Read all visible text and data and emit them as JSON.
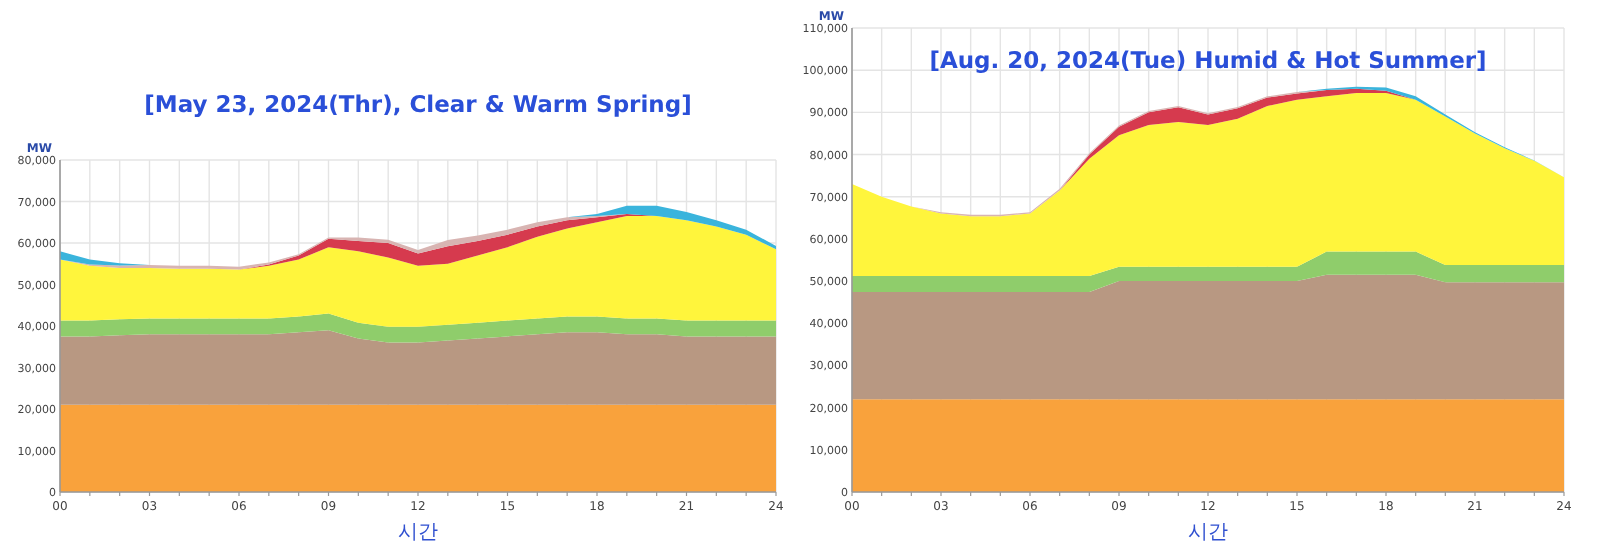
{
  "chart_data": [
    {
      "type": "area",
      "stacked": true,
      "title": "[May 23, 2024(Thr), Clear & Warm Spring]",
      "ylabel": "MW",
      "xlabel": "시간",
      "grid": true,
      "x": [
        0,
        1,
        2,
        3,
        4,
        5,
        6,
        7,
        8,
        9,
        10,
        11,
        12,
        13,
        14,
        15,
        16,
        17,
        18,
        19,
        20,
        21,
        22,
        23,
        24
      ],
      "xlim": [
        0,
        24
      ],
      "xticks": [
        {
          "value": 0,
          "label": "00"
        },
        {
          "value": 1,
          "label": null
        },
        {
          "value": 2,
          "label": null
        },
        {
          "value": 3,
          "label": "03"
        },
        {
          "value": 4,
          "label": null
        },
        {
          "value": 5,
          "label": null
        },
        {
          "value": 6,
          "label": "06"
        },
        {
          "value": 7,
          "label": null
        },
        {
          "value": 8,
          "label": null
        },
        {
          "value": 9,
          "label": "09"
        },
        {
          "value": 10,
          "label": null
        },
        {
          "value": 11,
          "label": null
        },
        {
          "value": 12,
          "label": "12"
        },
        {
          "value": 13,
          "label": null
        },
        {
          "value": 14,
          "label": null
        },
        {
          "value": 15,
          "label": "15"
        },
        {
          "value": 16,
          "label": null
        },
        {
          "value": 17,
          "label": null
        },
        {
          "value": 18,
          "label": "18"
        },
        {
          "value": 19,
          "label": null
        },
        {
          "value": 20,
          "label": null
        },
        {
          "value": 21,
          "label": "21"
        },
        {
          "value": 22,
          "label": null
        },
        {
          "value": 23,
          "label": null
        },
        {
          "value": 24,
          "label": "24"
        }
      ],
      "ylim": [
        0,
        80000
      ],
      "yticks": [
        0,
        {
          "value": 10000,
          "label": "10,000"
        },
        {
          "value": 20000,
          "label": "20,000"
        },
        {
          "value": 30000,
          "label": "30,000"
        },
        {
          "value": 40000,
          "label": "40,000"
        },
        {
          "value": 50000,
          "label": "50,000"
        },
        {
          "value": 60000,
          "label": "60,000"
        },
        {
          "value": 70000,
          "label": "70,000"
        },
        {
          "value": 80000,
          "label": "80,000"
        }
      ],
      "series": [
        {
          "color": "#f9a23c",
          "values": [
            21000,
            21000,
            21000,
            21000,
            21000,
            21000,
            21000,
            21000,
            21000,
            21000,
            21000,
            21000,
            21000,
            21000,
            21000,
            21000,
            21000,
            21000,
            21000,
            21000,
            21000,
            21000,
            21000,
            21000,
            21000
          ]
        },
        {
          "color": "#b89882",
          "values": [
            16500,
            16500,
            16800,
            17000,
            17000,
            17000,
            17000,
            17000,
            17500,
            18000,
            16000,
            15000,
            15000,
            15500,
            16000,
            16500,
            17000,
            17500,
            17500,
            17000,
            17000,
            16500,
            16500,
            16500,
            16500
          ]
        },
        {
          "color": "#8fcd6b",
          "values": [
            3800,
            3800,
            3800,
            3800,
            3800,
            3800,
            3800,
            3800,
            3800,
            4000,
            3800,
            3800,
            3800,
            3800,
            3800,
            3800,
            3800,
            3800,
            3800,
            3800,
            3800,
            3800,
            3800,
            3800,
            3800
          ]
        },
        {
          "color": "#fff53c",
          "values": [
            14700,
            13200,
            12400,
            12200,
            12000,
            12000,
            11800,
            12700,
            13700,
            16000,
            17200,
            16700,
            14700,
            14700,
            16200,
            17700,
            19700,
            21200,
            22700,
            24700,
            24700,
            24200,
            22700,
            20700,
            17200
          ]
        },
        {
          "color": "#d63a4e",
          "values": [
            null,
            null,
            null,
            null,
            null,
            null,
            0,
            300,
            1000,
            2000,
            2500,
            3500,
            3000,
            4200,
            3500,
            3000,
            2500,
            2000,
            1200,
            500,
            0,
            null,
            null,
            null,
            null
          ]
        },
        {
          "color": "#d8b4b2",
          "values": [
            0,
            300,
            600,
            700,
            700,
            700,
            700,
            500,
            300,
            300,
            800,
            800,
            800,
            1500,
            1300,
            1200,
            1000,
            700,
            300,
            0,
            null,
            null,
            null,
            null,
            null
          ]
        },
        {
          "color": "#3ab4dc",
          "values": [
            2000,
            1200,
            500,
            0,
            null,
            null,
            null,
            null,
            null,
            null,
            null,
            null,
            null,
            null,
            null,
            null,
            null,
            0,
            500,
            2000,
            2500,
            2000,
            1500,
            1200,
            800
          ]
        }
      ]
    },
    {
      "type": "area",
      "stacked": true,
      "title": "[Aug. 20, 2024(Tue) Humid & Hot Summer]",
      "ylabel": "MW",
      "xlabel": "시간",
      "grid": true,
      "x": [
        0,
        1,
        2,
        3,
        4,
        5,
        6,
        7,
        8,
        9,
        10,
        11,
        12,
        13,
        14,
        15,
        16,
        17,
        18,
        19,
        20,
        21,
        22,
        23,
        24
      ],
      "xlim": [
        0,
        24
      ],
      "xticks": [
        {
          "value": 0,
          "label": "00"
        },
        {
          "value": 1,
          "label": null
        },
        {
          "value": 2,
          "label": null
        },
        {
          "value": 3,
          "label": "03"
        },
        {
          "value": 4,
          "label": null
        },
        {
          "value": 5,
          "label": null
        },
        {
          "value": 6,
          "label": "06"
        },
        {
          "value": 7,
          "label": null
        },
        {
          "value": 8,
          "label": null
        },
        {
          "value": 9,
          "label": "09"
        },
        {
          "value": 10,
          "label": null
        },
        {
          "value": 11,
          "label": null
        },
        {
          "value": 12,
          "label": "12"
        },
        {
          "value": 13,
          "label": null
        },
        {
          "value": 14,
          "label": null
        },
        {
          "value": 15,
          "label": "15"
        },
        {
          "value": 16,
          "label": null
        },
        {
          "value": 17,
          "label": null
        },
        {
          "value": 18,
          "label": "18"
        },
        {
          "value": 19,
          "label": null
        },
        {
          "value": 20,
          "label": null
        },
        {
          "value": 21,
          "label": "21"
        },
        {
          "value": 22,
          "label": null
        },
        {
          "value": 23,
          "label": null
        },
        {
          "value": 24,
          "label": "24"
        }
      ],
      "ylim": [
        0,
        110000
      ],
      "yticks": [
        0,
        {
          "value": 10000,
          "label": "10,000"
        },
        {
          "value": 20000,
          "label": "20,000"
        },
        {
          "value": 30000,
          "label": "30,000"
        },
        {
          "value": 40000,
          "label": "40,000"
        },
        {
          "value": 50000,
          "label": "50,000"
        },
        {
          "value": 60000,
          "label": "60,000"
        },
        {
          "value": 70000,
          "label": "70,000"
        },
        {
          "value": 80000,
          "label": "80,000"
        },
        {
          "value": 90000,
          "label": "90,000"
        },
        {
          "value": 100000,
          "label": "100,000"
        },
        {
          "value": 110000,
          "label": "110,000"
        }
      ],
      "series": [
        {
          "color": "#f9a23c",
          "values": [
            22000,
            22000,
            22000,
            22000,
            22000,
            22000,
            22000,
            22000,
            22000,
            22000,
            22000,
            22000,
            22000,
            22000,
            22000,
            22000,
            22000,
            22000,
            22000,
            22000,
            22000,
            22000,
            22000,
            22000,
            22000
          ]
        },
        {
          "color": "#b89882",
          "values": [
            25400,
            25400,
            25400,
            25400,
            25400,
            25400,
            25400,
            25400,
            25400,
            28000,
            28000,
            28000,
            28000,
            28000,
            28000,
            28000,
            29500,
            29500,
            29500,
            29500,
            27700,
            27700,
            27700,
            27700,
            27700
          ]
        },
        {
          "color": "#8fcd6b",
          "values": [
            3800,
            3800,
            3800,
            3800,
            3800,
            3800,
            3800,
            3800,
            3800,
            3400,
            3400,
            3400,
            3400,
            3400,
            3400,
            3400,
            5500,
            5500,
            5500,
            5500,
            4100,
            4100,
            4100,
            4100,
            4100
          ]
        },
        {
          "color": "#fff53c",
          "values": [
            21800,
            18800,
            16500,
            14800,
            14200,
            14200,
            14800,
            20300,
            27800,
            31200,
            33600,
            34300,
            33600,
            35100,
            38100,
            39600,
            36800,
            37600,
            37600,
            36000,
            35200,
            31200,
            27700,
            24700,
            20800
          ]
        },
        {
          "color": "#d63a4e",
          "values": [
            null,
            null,
            null,
            null,
            null,
            null,
            null,
            0,
            1000,
            2000,
            3000,
            3500,
            2500,
            2500,
            2000,
            1500,
            1500,
            1000,
            500,
            0,
            null,
            null,
            null,
            null,
            null
          ]
        },
        {
          "color": "#d8b4b2",
          "values": [
            null,
            null,
            0,
            300,
            300,
            300,
            300,
            400,
            300,
            300,
            300,
            300,
            300,
            300,
            300,
            300,
            0,
            null,
            null,
            null,
            null,
            null,
            null,
            null,
            null
          ]
        },
        {
          "color": "#3ab4dc",
          "values": [
            null,
            null,
            null,
            null,
            null,
            null,
            null,
            null,
            null,
            null,
            null,
            null,
            null,
            null,
            null,
            0,
            300,
            500,
            800,
            800,
            500,
            300,
            200,
            100,
            0
          ]
        }
      ]
    }
  ]
}
